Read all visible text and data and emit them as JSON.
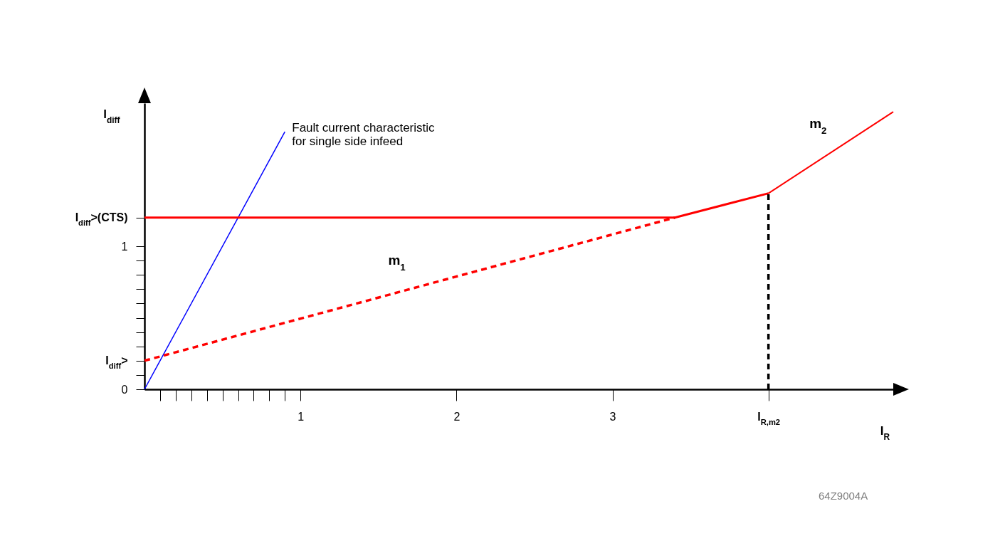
{
  "chart_data": {
    "type": "line",
    "xlabel": "I$_{R}$",
    "ylabel": "I$_{diff}$",
    "xlim": [
      0,
      4.8
    ],
    "ylim": [
      0,
      2.0
    ],
    "xticks": [
      {
        "value": 0.1,
        "label": null
      },
      {
        "value": 0.2,
        "label": null
      },
      {
        "value": 0.3,
        "label": null
      },
      {
        "value": 0.4,
        "label": null
      },
      {
        "value": 0.5,
        "label": null
      },
      {
        "value": 0.6,
        "label": null
      },
      {
        "value": 0.7,
        "label": null
      },
      {
        "value": 0.8,
        "label": null
      },
      {
        "value": 0.9,
        "label": null
      },
      1,
      2,
      3,
      {
        "value": 4,
        "label": "I$_{R,m2}$"
      }
    ],
    "yticks": [
      0,
      {
        "value": 0.1,
        "label": null
      },
      {
        "value": 0.2,
        "label": "I$_{diff}$>"
      },
      {
        "value": 0.3,
        "label": null
      },
      {
        "value": 0.4,
        "label": null
      },
      {
        "value": 0.5,
        "label": null
      },
      {
        "value": 0.6,
        "label": null
      },
      {
        "value": 0.7,
        "label": null
      },
      {
        "value": 0.8,
        "label": null
      },
      {
        "value": 0.9,
        "label": null
      },
      1,
      {
        "value": 1.2,
        "label": "I$_{diff}$>(CTS)"
      }
    ],
    "series": [
      {
        "name": "Fault current characteristic\nfor single side infeed",
        "color": "#0000ff",
        "x": [
          0,
          0.9
        ],
        "values": [
          0,
          1.8
        ]
      },
      {
        "color": "#ff0000",
        "x": [
          0,
          3.4,
          4
        ],
        "values": [
          1.2,
          1.2,
          1.37
        ]
      },
      {
        "name": "m$_{1}$",
        "color": "#ff0000",
        "x": [
          0,
          3.4
        ],
        "values": [
          0.2,
          1.2
        ],
        "line_style": "dashed"
      },
      {
        "name": "m$_{2}$",
        "color": "#ff0000",
        "x": [
          4,
          4.8
        ],
        "values": [
          1.37,
          1.94
        ]
      },
      {
        "color": "#000000",
        "x": [
          4,
          4
        ],
        "values": [
          0,
          1.37
        ],
        "line_style": "dashed"
      }
    ],
    "annotations": [
      "64Z9004A"
    ],
    "grid": false
  }
}
